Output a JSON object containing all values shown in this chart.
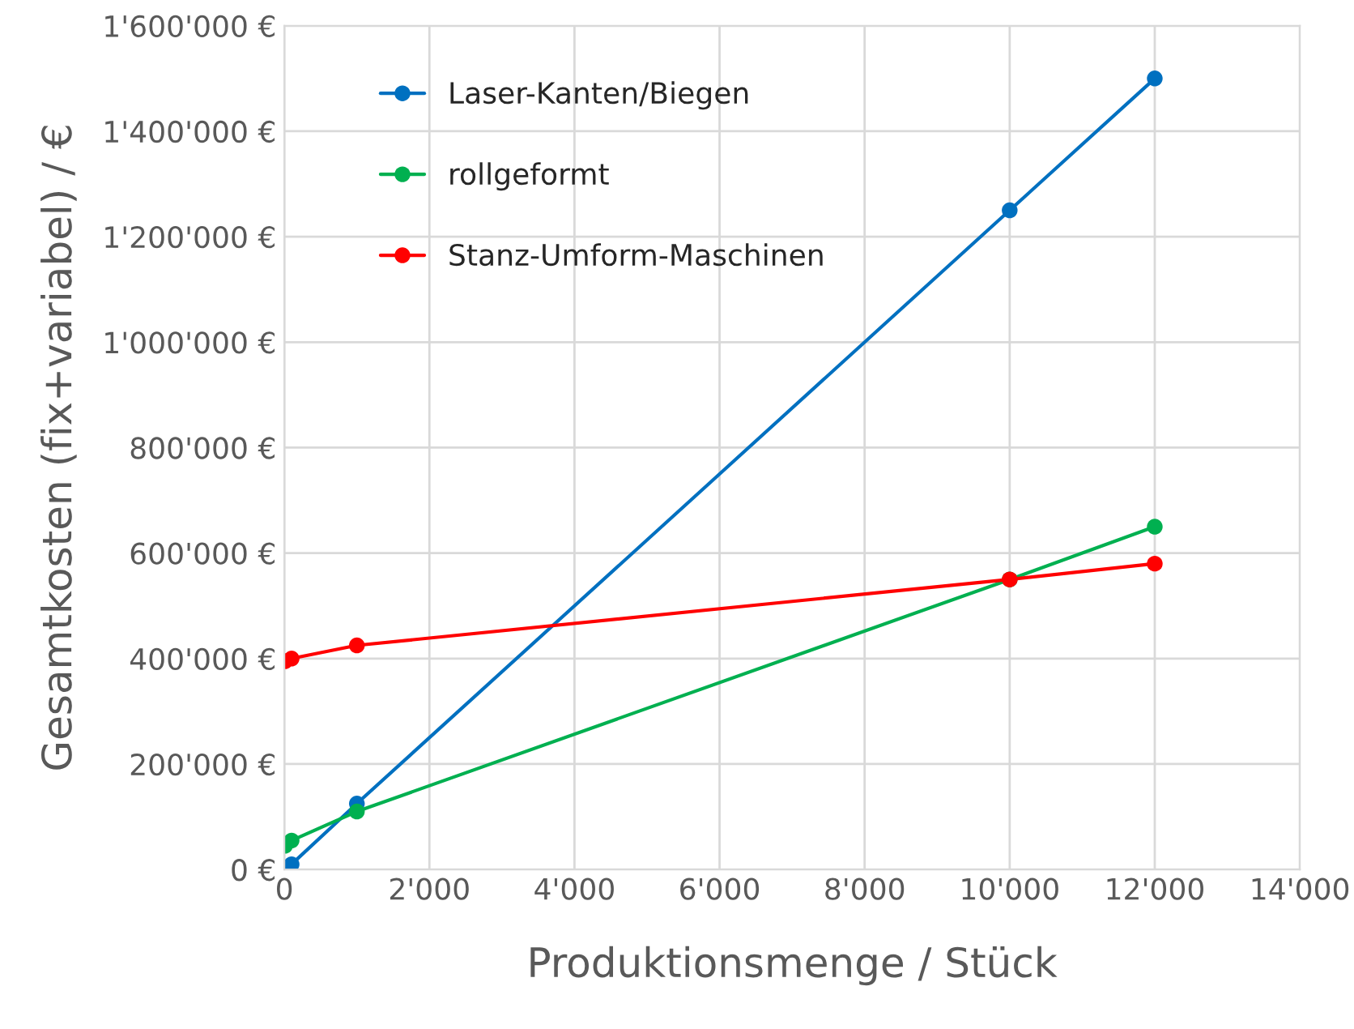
{
  "chart_data": {
    "type": "line",
    "xlabel": "Produktionsmenge / Stück",
    "ylabel": "Gesamtkosten (fix+variabel) / €",
    "xlim": [
      0,
      14000
    ],
    "ylim": [
      0,
      1600000
    ],
    "xticks": [
      0,
      {
        "value": 2000,
        "label": "2'000"
      },
      {
        "value": 4000,
        "label": "4'000"
      },
      {
        "value": 6000,
        "label": "6'000"
      },
      {
        "value": 8000,
        "label": "8'000"
      },
      {
        "value": 10000,
        "label": "10'000"
      },
      {
        "value": 12000,
        "label": "12'000"
      },
      {
        "value": 14000,
        "label": "14'000"
      }
    ],
    "yticks": [
      {
        "value": 0,
        "label": "0 €"
      },
      {
        "value": 200000,
        "label": "200'000 €"
      },
      {
        "value": 400000,
        "label": "400'000 €"
      },
      {
        "value": 600000,
        "label": "600'000 €"
      },
      {
        "value": 800000,
        "label": "800'000 €"
      },
      {
        "value": 1000000,
        "label": "1'000'000 €"
      },
      {
        "value": 1200000,
        "label": "1'200'000 €"
      },
      {
        "value": 1400000,
        "label": "1'400'000 €"
      },
      {
        "value": 1600000,
        "label": "1'600'000 €"
      }
    ],
    "x": [
      10,
      100,
      1000,
      10000,
      12000
    ],
    "series": [
      {
        "name": "Laser-Kanten/Biegen",
        "color": "#0070c0",
        "values": [
          0,
          10000,
          125000,
          1250000,
          1500000
        ]
      },
      {
        "name": "rollgeformt",
        "color": "#00b050",
        "values": [
          45000,
          55000,
          110000,
          550000,
          650000
        ]
      },
      {
        "name": "Stanz-Umform-Maschinen",
        "color": "#ff0000",
        "values": [
          395000,
          400000,
          425000,
          550000,
          580000
        ]
      }
    ],
    "grid": true,
    "legend": "top left",
    "marker": "circle",
    "line_style": "solid"
  }
}
